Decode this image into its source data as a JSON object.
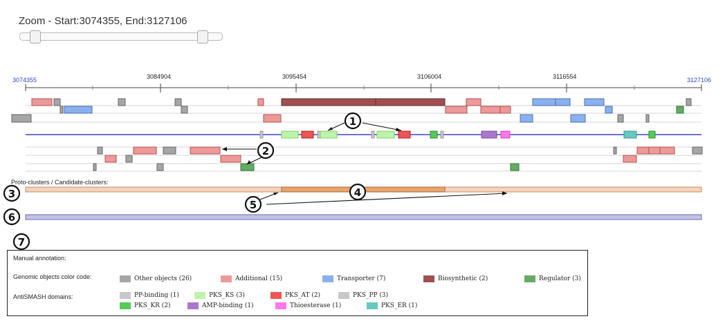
{
  "zoom": {
    "label": "Zoom - Start:3074355, End:3127106"
  },
  "axis": {
    "start_label": "3074355",
    "end_label": "3127106",
    "ticks": [
      "3084904",
      "3095454",
      "3106004",
      "3116554"
    ]
  },
  "proto_label": "Proto-clusters / Candidate-clusters:",
  "callouts": [
    "1",
    "2",
    "3",
    "4",
    "5",
    "6",
    "7"
  ],
  "legend": {
    "title": "Manual annotation:",
    "genomic_label": "Genomic objects color code:",
    "antismash_label": "AntiSMASH domains:",
    "genomic_items": [
      {
        "label": "Other objects (26)",
        "color": "#a6a6a6"
      },
      {
        "label": "Additional (15)",
        "color": "#ee9999"
      },
      {
        "label": "Transporter (7)",
        "color": "#8ab0ee"
      },
      {
        "label": "Biosynthetic (2)",
        "color": "#a05050"
      },
      {
        "label": "Regulator (3)",
        "color": "#66aa66"
      }
    ],
    "domain_items": [
      {
        "label": "PP-binding (1)",
        "color": "#c8c8c8"
      },
      {
        "label": "PKS_KS (3)",
        "color": "#bbf5a8"
      },
      {
        "label": "PKS_AT (2)",
        "color": "#ee5555"
      },
      {
        "label": "PKS_PP (3)",
        "color": "#c8c8c8"
      },
      {
        "label": "PKS_KR (2)",
        "color": "#55cc55"
      },
      {
        "label": "AMP-binding (1)",
        "color": "#aa77cc"
      },
      {
        "label": "Thioesterase (1)",
        "color": "#ff77ee"
      },
      {
        "label": "PKS_ER (1)",
        "color": "#66c8c0"
      }
    ]
  }
}
